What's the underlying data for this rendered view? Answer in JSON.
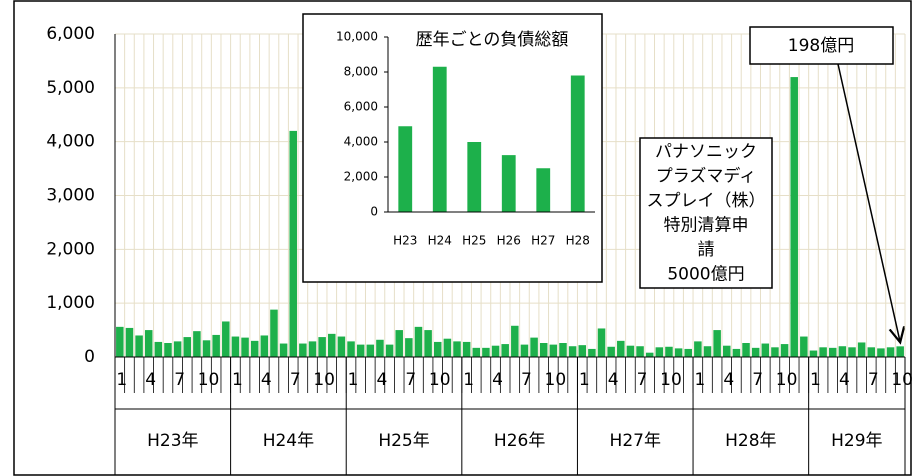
{
  "chart_data": [
    {
      "type": "bar",
      "color": "#1db04b",
      "grid": true,
      "categories": [
        "1",
        null,
        null,
        "4",
        null,
        null,
        "7",
        null,
        null,
        "10",
        null,
        null,
        "1",
        null,
        null,
        "4",
        null,
        null,
        "7",
        null,
        null,
        "10",
        null,
        null,
        "1",
        null,
        null,
        "4",
        null,
        null,
        "7",
        null,
        null,
        "10",
        null,
        null,
        "1",
        null,
        null,
        "4",
        null,
        null,
        "7",
        null,
        null,
        "10",
        null,
        null,
        "1",
        null,
        null,
        "4",
        null,
        null,
        "7",
        null,
        null,
        "10",
        null,
        null,
        "1",
        null,
        null,
        "4",
        null,
        null,
        "7",
        null,
        null,
        "10",
        null,
        null,
        "1",
        null,
        null,
        "4",
        null,
        null,
        "7",
        null,
        null,
        "10"
      ],
      "group_labels": [
        "H23年",
        "H24年",
        "H25年",
        "H26年",
        "H27年",
        "H28年",
        "H29年"
      ],
      "values": [
        560,
        540,
        400,
        500,
        280,
        260,
        290,
        370,
        480,
        310,
        410,
        660,
        380,
        360,
        300,
        400,
        880,
        250,
        4200,
        250,
        290,
        370,
        430,
        380,
        290,
        230,
        230,
        320,
        230,
        500,
        350,
        560,
        500,
        280,
        340,
        290,
        280,
        170,
        170,
        210,
        240,
        580,
        230,
        360,
        260,
        230,
        260,
        200,
        220,
        150,
        530,
        190,
        300,
        210,
        200,
        80,
        180,
        190,
        160,
        150,
        290,
        200,
        500,
        210,
        150,
        260,
        170,
        250,
        180,
        240,
        5200,
        380,
        120,
        180,
        170,
        200,
        180,
        270,
        180,
        160,
        180,
        198
      ],
      "ylim": [
        0,
        6000
      ],
      "yticks": [
        0,
        {
          "value": 1000,
          "label": "1,000"
        },
        {
          "value": 2000,
          "label": "2,000"
        },
        {
          "value": 3000,
          "label": "3,000"
        },
        {
          "value": 4000,
          "label": "4,000"
        },
        {
          "value": 5000,
          "label": "5,000"
        },
        {
          "value": 6000,
          "label": "6,000"
        }
      ],
      "annotation": [
        "パナソニック",
        "プラズマディ",
        "スプレイ（株）",
        "特別清算申",
        "請",
        "5000億円"
      ],
      "callout": "198億円"
    },
    {
      "type": "bar",
      "color": "#1db04b",
      "title": "歴年ごとの負債総額",
      "categories": [
        "H23",
        "H24",
        "H25",
        "H26",
        "H27",
        "H28"
      ],
      "values": [
        4900,
        8300,
        4000,
        3250,
        2500,
        7800
      ],
      "ylim": [
        0,
        10000
      ],
      "yticks": [
        0,
        {
          "value": 2000,
          "label": "2,000"
        },
        {
          "value": 4000,
          "label": "4,000"
        },
        {
          "value": 6000,
          "label": "6,000"
        },
        {
          "value": 8000,
          "label": "8,000"
        },
        {
          "value": 10000,
          "label": "10,000"
        }
      ]
    }
  ]
}
